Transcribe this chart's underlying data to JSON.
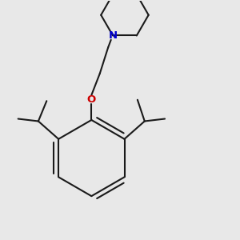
{
  "background_color": "#e8e8e8",
  "bond_color": "#1a1a1a",
  "nitrogen_color": "#0000cc",
  "oxygen_color": "#cc0000",
  "line_width": 1.5,
  "figsize": [
    3.0,
    3.0
  ],
  "dpi": 100,
  "xlim": [
    0,
    10
  ],
  "ylim": [
    0,
    10
  ]
}
